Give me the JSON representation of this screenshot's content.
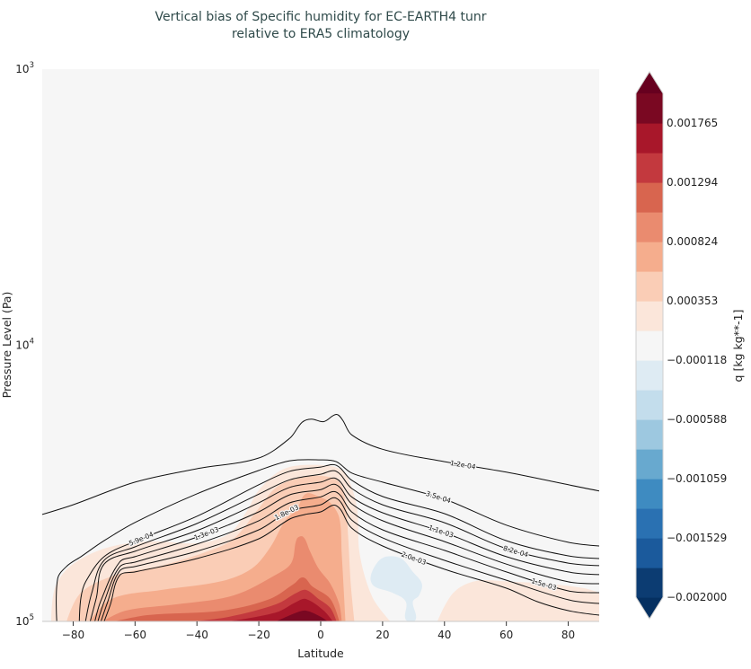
{
  "chart_data": {
    "type": "contour",
    "title": [
      "Vertical bias of Specific humidity for EC-EARTH4 tunr",
      "relative to ERA5 climatology"
    ],
    "xlabel": "Latitude",
    "ylabel": "Pressure Level (Pa)",
    "xlim": [
      -90,
      90
    ],
    "ylim": [
      1000,
      100000
    ],
    "yscale": "log",
    "y_inverted": true,
    "grid": false,
    "x_ticks": [
      -80,
      -60,
      -40,
      -20,
      0,
      20,
      40,
      60,
      80
    ],
    "x_tick_labels": [
      "−80",
      "−60",
      "−40",
      "−20",
      "0",
      "20",
      "40",
      "60",
      "80"
    ],
    "y_ticks": [
      1000,
      10000,
      100000
    ],
    "y_tick_labels": [
      {
        "base": "10",
        "exp": "3"
      },
      {
        "base": "10",
        "exp": "4"
      },
      {
        "base": "10",
        "exp": "5"
      }
    ],
    "colorbar": {
      "label": "q [kg kg**-1]",
      "placement": "right",
      "extend": "both",
      "range": [
        -0.002,
        0.002
      ],
      "n_bins": 17,
      "colors": [
        "#0c3c72",
        "#1b5a9c",
        "#2a71b2",
        "#3e8bc1",
        "#68a9cf",
        "#9dc8e0",
        "#c3ddec",
        "#deebf3",
        "#f6f6f6",
        "#fbe6da",
        "#facdb6",
        "#f5ad8d",
        "#ea8b6f",
        "#d8654f",
        "#c3393e",
        "#a8172a",
        "#7a0822"
      ],
      "under_color": "#053061",
      "over_color": "#67001f",
      "tick_values": [
        -0.002,
        -0.001529,
        -0.001059,
        -0.000588,
        -0.000118,
        0.000353,
        0.000824,
        0.001294,
        0.001765
      ],
      "tick_labels": [
        "−0.002000",
        "−0.001529",
        "−0.001059",
        "−0.000588",
        "−0.000118",
        "0.000353",
        "0.000824",
        "0.001294",
        "0.001765"
      ]
    },
    "background_bin": 8,
    "filled_regions": [
      {
        "bin": 9,
        "points": [
          [
            -87.1,
            100000
          ],
          [
            -85.9,
            75800
          ],
          [
            -80.7,
            62800
          ],
          [
            -69.1,
            54100
          ],
          [
            -54.5,
            51300
          ],
          [
            -40,
            52100
          ],
          [
            -29.8,
            48300
          ],
          [
            -24,
            40100
          ],
          [
            -20.2,
            33700
          ],
          [
            -12.4,
            28200
          ],
          [
            -2.8,
            27100
          ],
          [
            6.8,
            28200
          ],
          [
            9.7,
            32000
          ],
          [
            11.8,
            39200
          ],
          [
            12.6,
            57000
          ],
          [
            16.7,
            81700
          ],
          [
            22.5,
            100000
          ]
        ]
      },
      {
        "bin": 9,
        "points": [
          [
            37.7,
            100000
          ],
          [
            42.9,
            78700
          ],
          [
            50.2,
            71400
          ],
          [
            61.8,
            71900
          ],
          [
            73.4,
            73000
          ],
          [
            85.1,
            75800
          ],
          [
            90,
            78700
          ],
          [
            90,
            100000
          ]
        ]
      },
      {
        "bin": 7,
        "points": [
          [
            21.1,
            58300
          ],
          [
            26,
            59200
          ],
          [
            29.8,
            66200
          ],
          [
            32.7,
            73000
          ],
          [
            31.8,
            80500
          ],
          [
            29.8,
            84800
          ],
          [
            30.7,
            98500
          ],
          [
            27.5,
            98500
          ],
          [
            27.5,
            84800
          ],
          [
            23.1,
            78700
          ],
          [
            17.3,
            74600
          ],
          [
            16.1,
            69300
          ],
          [
            18.2,
            61400
          ]
        ]
      },
      {
        "bin": 10,
        "points": [
          [
            -82.1,
            100000
          ],
          [
            -77.5,
            78700
          ],
          [
            -65.9,
            67700
          ],
          [
            -51.3,
            62800
          ],
          [
            -35.6,
            55300
          ],
          [
            -28.1,
            50200
          ],
          [
            -20.2,
            39200
          ],
          [
            -14.4,
            32700
          ],
          [
            -7.7,
            30400
          ],
          [
            0.1,
            29700
          ],
          [
            6,
            31300
          ],
          [
            8,
            37200
          ],
          [
            8.9,
            50200
          ],
          [
            9.7,
            73000
          ],
          [
            10.9,
            100000
          ]
        ]
      },
      {
        "bin": 11,
        "points": [
          [
            -74.6,
            100000
          ],
          [
            -67.6,
            82900
          ],
          [
            -51.3,
            76900
          ],
          [
            -31.8,
            71400
          ],
          [
            -22.2,
            64300
          ],
          [
            -16.4,
            54100
          ],
          [
            -11.5,
            43200
          ],
          [
            -7.7,
            39200
          ],
          [
            -4.8,
            34500
          ],
          [
            -0.7,
            35300
          ],
          [
            3.1,
            37200
          ],
          [
            6,
            42200
          ],
          [
            6.8,
            57000
          ],
          [
            8,
            100000
          ]
        ]
      },
      {
        "bin": 12,
        "points": [
          [
            -70.5,
            100000
          ],
          [
            -63,
            91400
          ],
          [
            -46.4,
            86700
          ],
          [
            -28.1,
            80500
          ],
          [
            -14.4,
            67700
          ],
          [
            -9.5,
            61400
          ],
          [
            -7.7,
            50200
          ],
          [
            -5.7,
            49400
          ],
          [
            -3.6,
            55300
          ],
          [
            -0.7,
            64300
          ],
          [
            3.1,
            73000
          ],
          [
            6,
            86700
          ],
          [
            6.8,
            100000
          ]
        ]
      },
      {
        "bin": 13,
        "points": [
          [
            -66.7,
            100000
          ],
          [
            -56,
            94900
          ],
          [
            -31.8,
            91400
          ],
          [
            -16.4,
            82900
          ],
          [
            -8.6,
            73000
          ],
          [
            -5.7,
            69300
          ],
          [
            -2.8,
            74600
          ],
          [
            3.1,
            82900
          ],
          [
            6,
            100000
          ]
        ]
      },
      {
        "bin": 14,
        "points": [
          [
            -41.4,
            100000
          ],
          [
            -29.8,
            96300
          ],
          [
            -14.4,
            86700
          ],
          [
            -7.7,
            78700
          ],
          [
            -4.8,
            76900
          ],
          [
            -0.7,
            82900
          ],
          [
            3.1,
            89400
          ],
          [
            5.1,
            100000
          ]
        ]
      },
      {
        "bin": 15,
        "points": [
          [
            -29.8,
            100000
          ],
          [
            -14.4,
            92800
          ],
          [
            -7.7,
            84800
          ],
          [
            -4.8,
            82900
          ],
          [
            1,
            91400
          ],
          [
            3.9,
            100000
          ]
        ]
      },
      {
        "bin": 16,
        "points": [
          [
            -14.4,
            100000
          ],
          [
            -7.7,
            92800
          ],
          [
            -4.8,
            91400
          ],
          [
            0.1,
            96300
          ],
          [
            2.2,
            100000
          ]
        ]
      }
    ],
    "contour_lines": [
      {
        "label": "1.2e-04",
        "label_lat": 46,
        "points": [
          [
            -90,
            41000
          ],
          [
            -80,
            37800
          ],
          [
            -60,
            31300
          ],
          [
            -40,
            28000
          ],
          [
            -20,
            25600
          ],
          [
            -10,
            21700
          ],
          [
            -6,
            19000
          ],
          [
            -3,
            18500
          ],
          [
            1,
            18900
          ],
          [
            5,
            17800
          ],
          [
            7,
            18600
          ],
          [
            10,
            21100
          ],
          [
            20,
            23800
          ],
          [
            40,
            26400
          ],
          [
            60,
            28800
          ],
          [
            80,
            32000
          ],
          [
            90,
            33700
          ]
        ]
      },
      {
        "label": "3.5e-04",
        "label_lat": 38,
        "points": [
          [
            -85.3,
            100000
          ],
          [
            -85,
            70000
          ],
          [
            -82,
            63000
          ],
          [
            -77.5,
            58300
          ],
          [
            -70,
            51000
          ],
          [
            -60,
            43800
          ],
          [
            -40,
            34500
          ],
          [
            -20,
            28400
          ],
          [
            -10,
            26200
          ],
          [
            0,
            26000
          ],
          [
            5,
            26400
          ],
          [
            10,
            29000
          ],
          [
            20,
            31300
          ],
          [
            40,
            36100
          ],
          [
            60,
            44800
          ],
          [
            80,
            51700
          ],
          [
            90,
            53300
          ]
        ]
      },
      {
        "label": "5.9e-04",
        "label_lat": -58,
        "points": [
          [
            -78,
            100000
          ],
          [
            -77.5,
            82000
          ],
          [
            -76,
            72000
          ],
          [
            -70,
            58300
          ],
          [
            -60,
            51300
          ],
          [
            -40,
            41600
          ],
          [
            -20,
            32000
          ],
          [
            -10,
            28600
          ],
          [
            0,
            27600
          ],
          [
            5,
            27200
          ],
          [
            10,
            30800
          ],
          [
            20,
            35300
          ],
          [
            40,
            40700
          ],
          [
            60,
            51000
          ],
          [
            80,
            57900
          ],
          [
            90,
            59200
          ]
        ]
      },
      {
        "label": "8.2e-04",
        "label_lat": 63,
        "points": [
          [
            -76,
            100000
          ],
          [
            -74,
            79000
          ],
          [
            -70,
            60100
          ],
          [
            -60,
            53700
          ],
          [
            -40,
            44200
          ],
          [
            -20,
            34600
          ],
          [
            -10,
            30700
          ],
          [
            0,
            29300
          ],
          [
            5,
            28600
          ],
          [
            10,
            33000
          ],
          [
            20,
            37800
          ],
          [
            40,
            43900
          ],
          [
            60,
            54500
          ],
          [
            80,
            61500
          ],
          [
            90,
            62800
          ]
        ]
      },
      {
        "label": "1.1e-03",
        "label_lat": 39,
        "points": [
          [
            -74.5,
            100000
          ],
          [
            -72.5,
            82000
          ],
          [
            -70,
            62000
          ],
          [
            -60,
            55700
          ],
          [
            -40,
            46900
          ],
          [
            -20,
            37200
          ],
          [
            -10,
            32700
          ],
          [
            0,
            31300
          ],
          [
            5,
            30400
          ],
          [
            10,
            35400
          ],
          [
            20,
            40400
          ],
          [
            40,
            47700
          ],
          [
            60,
            58300
          ],
          [
            80,
            66200
          ],
          [
            90,
            67700
          ]
        ]
      },
      {
        "label": "1.3e-03",
        "label_lat": -37,
        "points": [
          [
            -73,
            100000
          ],
          [
            -71,
            84000
          ],
          [
            -65,
            61000
          ],
          [
            -60,
            58300
          ],
          [
            -40,
            49500
          ],
          [
            -20,
            40100
          ],
          [
            -10,
            34800
          ],
          [
            0,
            33300
          ],
          [
            5,
            32000
          ],
          [
            10,
            37500
          ],
          [
            20,
            43200
          ],
          [
            40,
            51400
          ],
          [
            60,
            62000
          ],
          [
            80,
            71900
          ],
          [
            90,
            73000
          ]
        ]
      },
      {
        "label": "1.5e-03",
        "label_lat": 72,
        "points": [
          [
            -72,
            100000
          ],
          [
            -70,
            85000
          ],
          [
            -65,
            63500
          ],
          [
            -60,
            61000
          ],
          [
            -40,
            52500
          ],
          [
            -20,
            43200
          ],
          [
            -10,
            37200
          ],
          [
            0,
            35400
          ],
          [
            5,
            34000
          ],
          [
            10,
            40100
          ],
          [
            20,
            46600
          ],
          [
            40,
            55300
          ],
          [
            60,
            66200
          ],
          [
            80,
            77500
          ],
          [
            90,
            78700
          ]
        ]
      },
      {
        "label": "1.8e-03",
        "label_lat": -11,
        "points": [
          [
            -71,
            100000
          ],
          [
            -69,
            86000
          ],
          [
            -65,
            65700
          ],
          [
            -60,
            63300
          ],
          [
            -40,
            55700
          ],
          [
            -20,
            46600
          ],
          [
            -10,
            39800
          ],
          [
            0,
            37800
          ],
          [
            5,
            35800
          ],
          [
            10,
            42900
          ],
          [
            20,
            49800
          ],
          [
            40,
            60100
          ],
          [
            60,
            70900
          ],
          [
            80,
            83500
          ],
          [
            90,
            86100
          ]
        ]
      },
      {
        "label": "2.0e-03",
        "label_lat": 30,
        "points": [
          [
            -70,
            100000
          ],
          [
            -68,
            87000
          ],
          [
            -65,
            68200
          ],
          [
            -60,
            66200
          ],
          [
            -40,
            59200
          ],
          [
            -20,
            50200
          ],
          [
            -10,
            42600
          ],
          [
            -5,
            41000
          ],
          [
            0,
            40100
          ],
          [
            5,
            38100
          ],
          [
            10,
            45900
          ],
          [
            20,
            53300
          ],
          [
            40,
            64700
          ],
          [
            60,
            75800
          ],
          [
            70,
            84800
          ],
          [
            80,
            91400
          ],
          [
            90,
            94900
          ]
        ]
      }
    ]
  }
}
